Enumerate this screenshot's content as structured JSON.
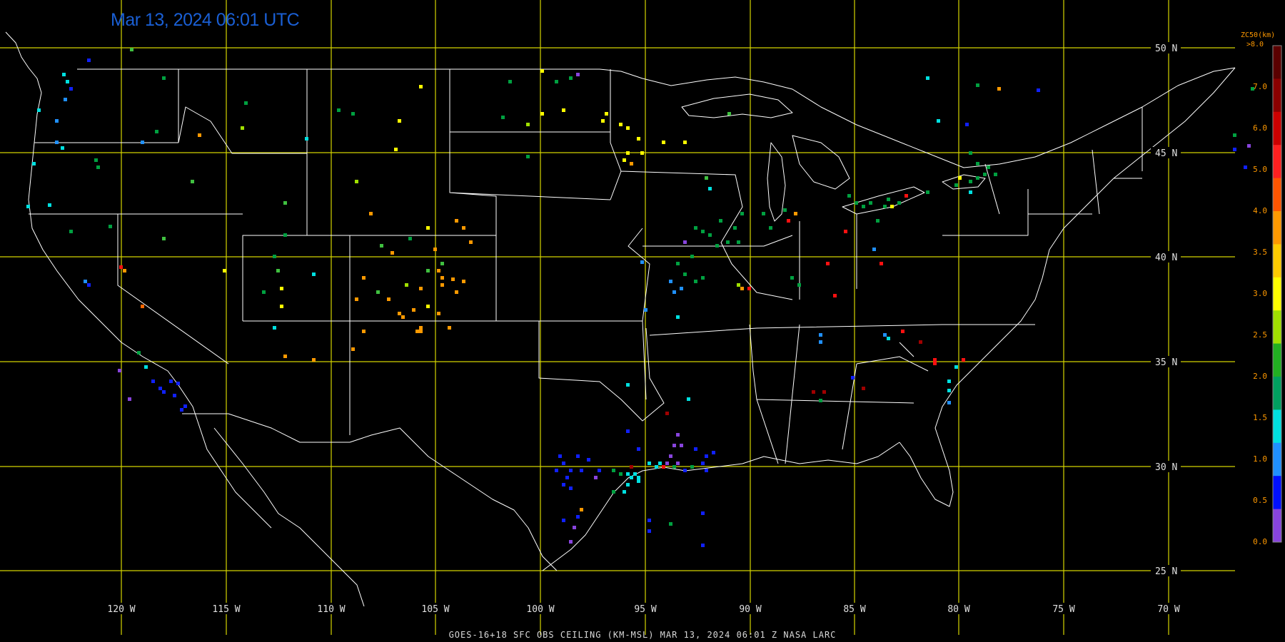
{
  "header": {
    "timestamp": "Mar 13, 2024 06:01 UTC"
  },
  "footer": {
    "caption": "GOES-16+18  SFC OBS CEILING (KM-MSL)   MAR 13, 2024 06:01 Z   NASA LARC"
  },
  "map": {
    "lat_labels": [
      "50 N",
      "45 N",
      "40 N",
      "35 N",
      "30 N",
      "25 N"
    ],
    "lon_labels": [
      "120 W",
      "115 W",
      "110 W",
      "105 W",
      "100 W",
      "95 W",
      "90 W",
      "85 W",
      "80 W",
      "75 W",
      "70 W"
    ],
    "grid_color": "#d4d400",
    "boundary_color": "#ffffff"
  },
  "colorbar": {
    "title": "ZC50(km)",
    "max_label": ">8.0",
    "ticks": [
      "7.0",
      "6.0",
      "5.0",
      "4.0",
      "3.5",
      "3.0",
      "2.5",
      "2.0",
      "1.5",
      "1.0",
      "0.5",
      "0.0"
    ],
    "colors": [
      "#5a0000",
      "#8b0000",
      "#cc0000",
      "#ff2020",
      "#ff5500",
      "#ff9900",
      "#ffcc00",
      "#ffff00",
      "#a0e000",
      "#22b022",
      "#00a060",
      "#00e0e0",
      "#2090ff",
      "#0010ff",
      "#8844dd"
    ]
  },
  "legend_colors": {
    "purple": "#8844dd",
    "blue": "#1020ff",
    "lightblue": "#2090ff",
    "cyan": "#00e0e0",
    "green": "#00a040",
    "lime": "#40c040",
    "yellowgreen": "#a0e000",
    "yellow": "#ffff00",
    "orange": "#ff9900",
    "darkorange": "#ff6600",
    "red": "#ff1010",
    "darkred": "#a00000"
  }
}
